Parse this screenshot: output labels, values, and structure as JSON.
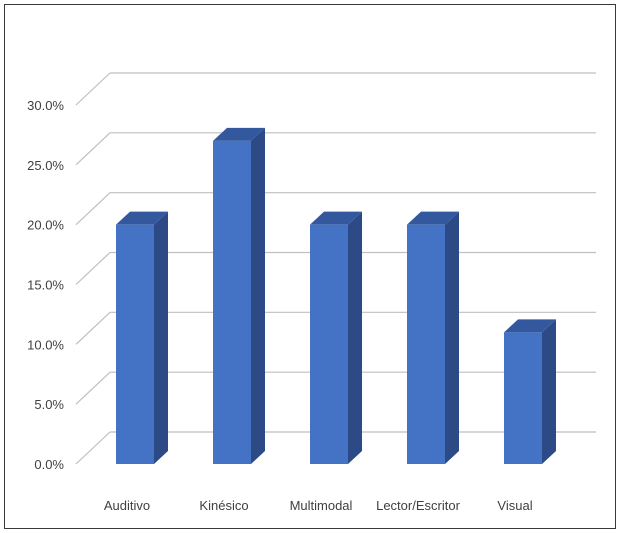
{
  "chart_data": {
    "type": "bar",
    "style": "3d-column",
    "categories": [
      "Auditivo",
      "Kinésico",
      "Multimodal",
      "Lector/Escritor",
      "Visual"
    ],
    "values": [
      0.2,
      0.27,
      0.2,
      0.2,
      0.11
    ],
    "ylim": [
      0,
      0.3
    ],
    "yticks": [
      "0.0%",
      "5.0%",
      "10.0%",
      "15.0%",
      "20.0%",
      "25.0%",
      "30.0%"
    ],
    "title": "",
    "xlabel": "",
    "ylabel": "",
    "legend": "none",
    "grid": true,
    "colors": {
      "bar_front": "#4472C4",
      "bar_side": "#2B4A86",
      "bar_top": "#34589E",
      "gridline": "#BFBFBF",
      "text": "#404040"
    }
  }
}
